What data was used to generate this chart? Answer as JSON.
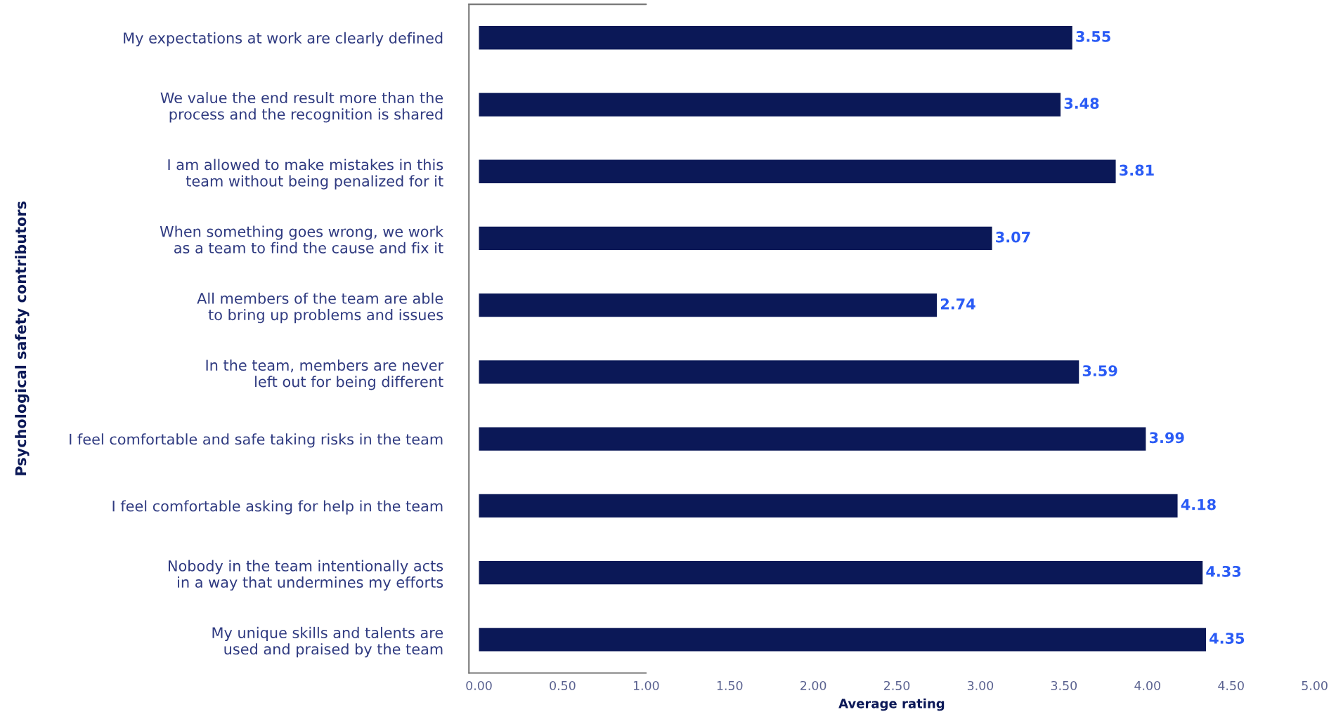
{
  "chart_data": {
    "type": "bar",
    "orientation": "horizontal",
    "xlabel": "Average rating",
    "ylabel": "Psychological safety contributors",
    "categories": [
      "My expectations at work are clearly defined",
      "We value the end result more than the\nprocess and the recognition is shared",
      "I am allowed to make mistakes in this\nteam without being penalized for it",
      "When something goes wrong, we work\nas a team to find the cause and fix it",
      "All members of the team are able\nto bring up problems and issues",
      "In the team, members are never\nleft out for being different",
      "I feel comfortable and safe taking risks in the team",
      "I feel comfortable asking for help in the team",
      "Nobody in the team intentionally acts\nin a way that undermines my efforts",
      "My unique skills and talents are\nused and praised by the team"
    ],
    "values": [
      3.55,
      3.48,
      3.81,
      3.07,
      2.74,
      3.59,
      3.99,
      4.18,
      4.33,
      4.35
    ],
    "color": "#0b1857",
    "data_labels": true,
    "grid": false,
    "legend": false,
    "xlim": [
      -0.06,
      5.0
    ],
    "xticks": [
      {
        "value": 0,
        "label": "0.00"
      },
      {
        "value": 0.5,
        "label": "0.50"
      },
      {
        "value": 1,
        "label": "1.00"
      },
      {
        "value": 1.5,
        "label": "1.50"
      },
      {
        "value": 2,
        "label": "2.00"
      },
      {
        "value": 2.5,
        "label": "2.50"
      },
      {
        "value": 3,
        "label": "3.00"
      },
      {
        "value": 3.5,
        "label": "3.50"
      },
      {
        "value": 4,
        "label": "4.00"
      },
      {
        "value": 4.5,
        "label": "4.50"
      },
      {
        "value": 5,
        "label": "5.00"
      }
    ]
  }
}
